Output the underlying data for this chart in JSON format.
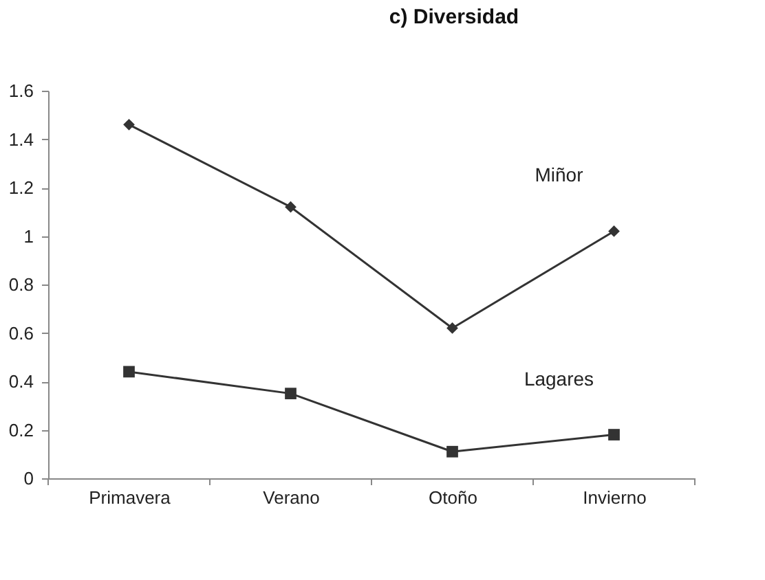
{
  "chart_data": {
    "type": "line",
    "title": "c) Diversidad",
    "categories": [
      "Primavera",
      "Verano",
      "Otoño",
      "Invierno"
    ],
    "series": [
      {
        "name": "Miñor",
        "color": "#333333",
        "marker": "diamond",
        "values": [
          1.46,
          1.12,
          0.62,
          1.02
        ]
      },
      {
        "name": "Lagares",
        "color": "#333333",
        "marker": "square",
        "values": [
          0.44,
          0.35,
          0.11,
          0.18
        ]
      }
    ],
    "ylim": [
      0,
      1.6
    ],
    "yticks": [
      0,
      0.2,
      0.4,
      0.6,
      0.8,
      1,
      1.2,
      1.4,
      1.6
    ],
    "grid": false,
    "legend": false,
    "line_style": "solid"
  }
}
